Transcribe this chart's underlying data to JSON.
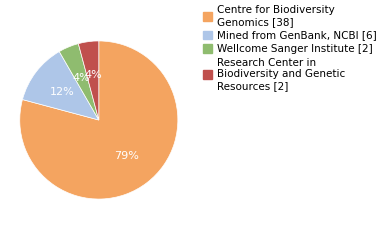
{
  "labels": [
    "Centre for Biodiversity\nGenomics [38]",
    "Mined from GenBank, NCBI [6]",
    "Wellcome Sanger Institute [2]",
    "Research Center in\nBiodiversity and Genetic\nResources [2]"
  ],
  "values": [
    38,
    6,
    2,
    2
  ],
  "colors": [
    "#f4a460",
    "#aec6e8",
    "#8fbc6f",
    "#c0504d"
  ],
  "pct_labels": [
    "79%",
    "12%",
    "4%",
    "4%"
  ],
  "background_color": "#ffffff",
  "text_color": "#ffffff",
  "autopct_fontsize": 8,
  "legend_fontsize": 7.5
}
